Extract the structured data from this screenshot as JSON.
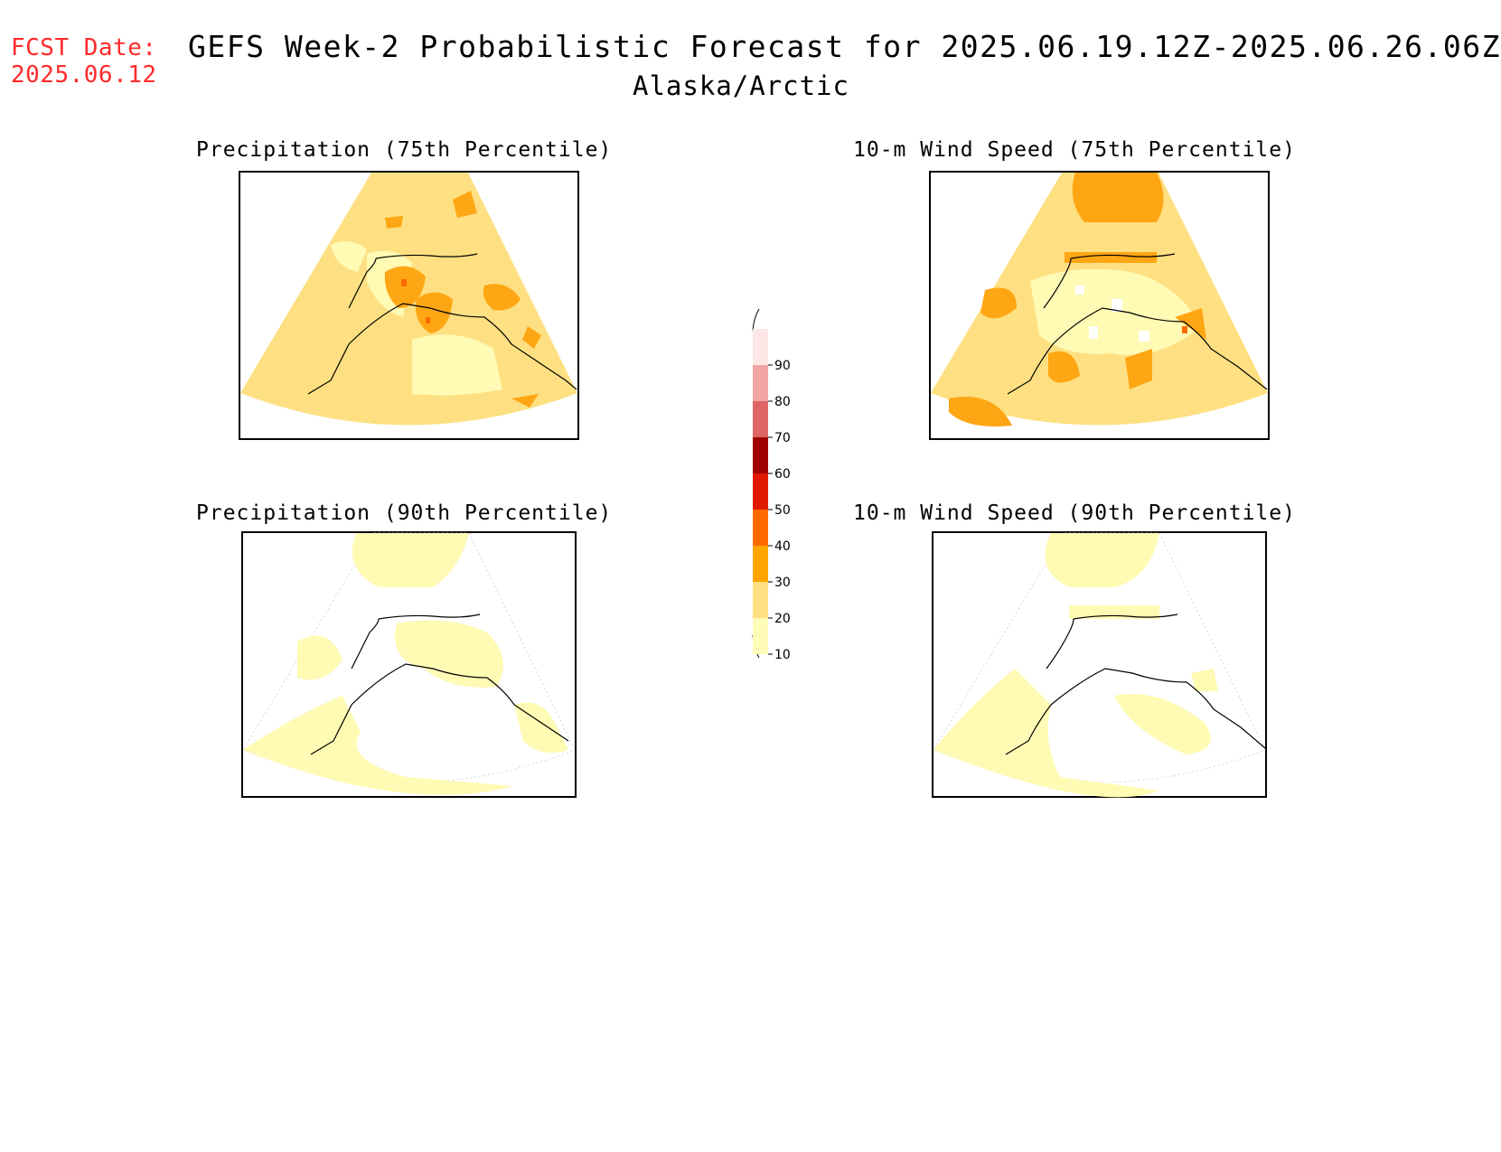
{
  "header": {
    "fcst_label": "FCST Date:",
    "fcst_date": "2025.06.12",
    "title": "GEFS Week-2 Probabilistic Forecast for 2025.06.19.12Z-2025.06.26.06Z",
    "subtitle": "Alaska/Arctic"
  },
  "panels": [
    {
      "title": "Precipitation (75th Percentile)",
      "variable": "Precipitation",
      "percentile": "75th"
    },
    {
      "title": "10-m Wind Speed (75th Percentile)",
      "variable": "10-m Wind Speed",
      "percentile": "75th"
    },
    {
      "title": "Precipitation (90th Percentile)",
      "variable": "Precipitation",
      "percentile": "90th"
    },
    {
      "title": "10-m Wind Speed (90th Percentile)",
      "variable": "10-m Wind Speed",
      "percentile": "90th"
    }
  ],
  "colorbar": {
    "levels": [
      "90",
      "80",
      "70",
      "60",
      "50",
      "40",
      "30",
      "20",
      "10"
    ],
    "colors": {
      "band_90_100": "#fde6e6",
      "band_80_90": "#f2a3a3",
      "band_70_80": "#de6666",
      "band_60_70": "#a00000",
      "band_50_60": "#e01a00",
      "band_40_50": "#ff6a00",
      "band_30_40": "#ffa500",
      "band_20_30": "#ffe080",
      "band_10_20": "#fffbb8"
    }
  },
  "map_colors": {
    "bg_20_30": "#fee082",
    "light_10_20": "#fffab4",
    "orange_30_40": "#ffa614",
    "dark_40_50": "#ff6a00",
    "white": "#ffffff",
    "coast": "#000000"
  },
  "fcst_color": "#ff2a2a"
}
